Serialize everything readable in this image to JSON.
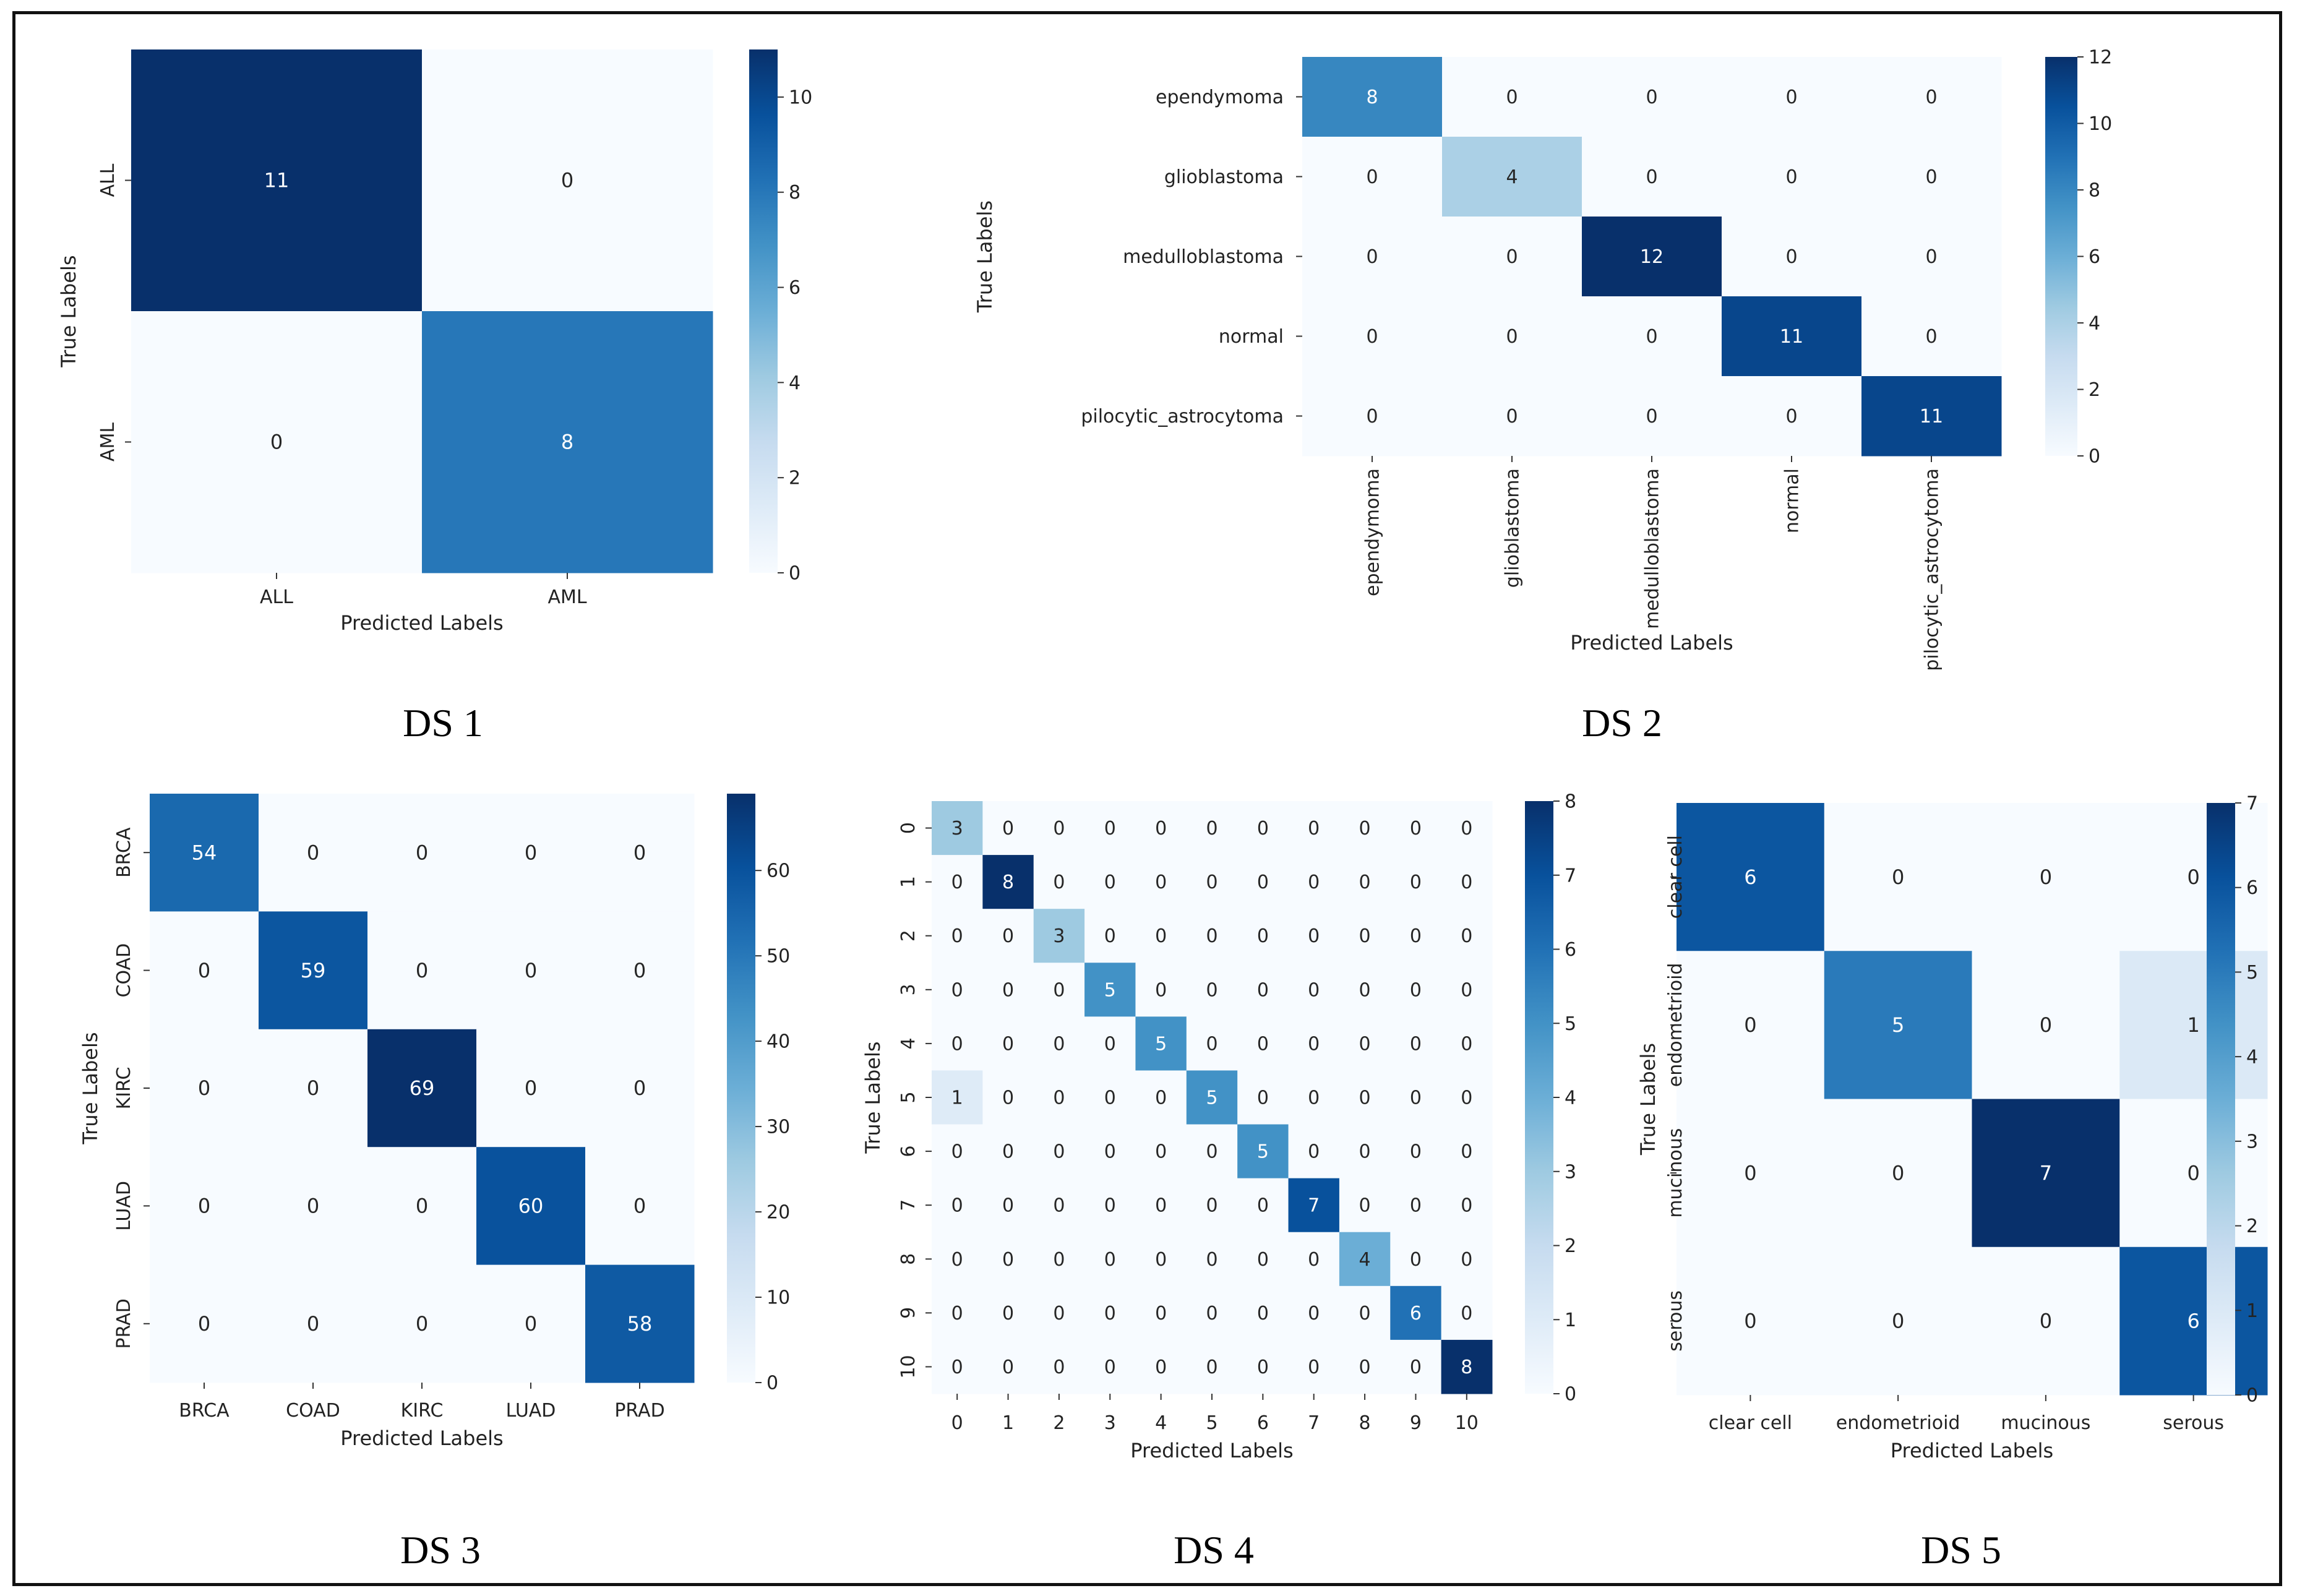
{
  "figure": {
    "captions": [
      "DS 1",
      "DS 2",
      "DS 3",
      "DS 4",
      "DS 5"
    ]
  },
  "chart_data": [
    {
      "type": "heatmap",
      "caption": "DS 1",
      "xlabel": "Predicted Labels",
      "ylabel": "True Labels",
      "labels": [
        "ALL",
        "AML"
      ],
      "matrix": [
        [
          11,
          0
        ],
        [
          0,
          8
        ]
      ],
      "vmin": 0,
      "vmax": 11,
      "colorbar_ticks": [
        0,
        2,
        4,
        6,
        8,
        10
      ],
      "colormap": "Blues"
    },
    {
      "type": "heatmap",
      "caption": "DS 2",
      "xlabel": "Predicted Labels",
      "ylabel": "True Labels",
      "labels": [
        "ependymoma",
        "glioblastoma",
        "medulloblastoma",
        "normal",
        "pilocytic_astrocytoma"
      ],
      "matrix": [
        [
          8,
          0,
          0,
          0,
          0
        ],
        [
          0,
          4,
          0,
          0,
          0
        ],
        [
          0,
          0,
          12,
          0,
          0
        ],
        [
          0,
          0,
          0,
          11,
          0
        ],
        [
          0,
          0,
          0,
          0,
          11
        ]
      ],
      "vmin": 0,
      "vmax": 12,
      "colorbar_ticks": [
        0,
        2,
        4,
        6,
        8,
        10,
        12
      ],
      "colormap": "Blues"
    },
    {
      "type": "heatmap",
      "caption": "DS 3",
      "xlabel": "Predicted Labels",
      "ylabel": "True Labels",
      "labels": [
        "BRCA",
        "COAD",
        "KIRC",
        "LUAD",
        "PRAD"
      ],
      "matrix": [
        [
          54,
          0,
          0,
          0,
          0
        ],
        [
          0,
          59,
          0,
          0,
          0
        ],
        [
          0,
          0,
          69,
          0,
          0
        ],
        [
          0,
          0,
          0,
          60,
          0
        ],
        [
          0,
          0,
          0,
          0,
          58
        ]
      ],
      "vmin": 0,
      "vmax": 69,
      "colorbar_ticks": [
        0,
        10,
        20,
        30,
        40,
        50,
        60
      ],
      "colormap": "Blues"
    },
    {
      "type": "heatmap",
      "caption": "DS 4",
      "xlabel": "Predicted Labels",
      "ylabel": "True Labels",
      "labels": [
        "0",
        "1",
        "2",
        "3",
        "4",
        "5",
        "6",
        "7",
        "8",
        "9",
        "10"
      ],
      "matrix": [
        [
          3,
          0,
          0,
          0,
          0,
          0,
          0,
          0,
          0,
          0,
          0
        ],
        [
          0,
          8,
          0,
          0,
          0,
          0,
          0,
          0,
          0,
          0,
          0
        ],
        [
          0,
          0,
          3,
          0,
          0,
          0,
          0,
          0,
          0,
          0,
          0
        ],
        [
          0,
          0,
          0,
          5,
          0,
          0,
          0,
          0,
          0,
          0,
          0
        ],
        [
          0,
          0,
          0,
          0,
          5,
          0,
          0,
          0,
          0,
          0,
          0
        ],
        [
          1,
          0,
          0,
          0,
          0,
          5,
          0,
          0,
          0,
          0,
          0
        ],
        [
          0,
          0,
          0,
          0,
          0,
          0,
          5,
          0,
          0,
          0,
          0
        ],
        [
          0,
          0,
          0,
          0,
          0,
          0,
          0,
          7,
          0,
          0,
          0
        ],
        [
          0,
          0,
          0,
          0,
          0,
          0,
          0,
          0,
          4,
          0,
          0
        ],
        [
          0,
          0,
          0,
          0,
          0,
          0,
          0,
          0,
          0,
          6,
          0
        ],
        [
          0,
          0,
          0,
          0,
          0,
          0,
          0,
          0,
          0,
          0,
          8
        ]
      ],
      "vmin": 0,
      "vmax": 8,
      "colorbar_ticks": [
        0,
        1,
        2,
        3,
        4,
        5,
        6,
        7,
        8
      ],
      "colormap": "Blues"
    },
    {
      "type": "heatmap",
      "caption": "DS 5",
      "xlabel": "Predicted Labels",
      "ylabel": "True Labels",
      "labels": [
        "clear cell",
        "endometrioid",
        "mucinous",
        "serous"
      ],
      "matrix": [
        [
          6,
          0,
          0,
          0
        ],
        [
          0,
          5,
          0,
          1
        ],
        [
          0,
          0,
          7,
          0
        ],
        [
          0,
          0,
          0,
          6
        ]
      ],
      "vmin": 0,
      "vmax": 7,
      "colorbar_ticks": [
        0,
        1,
        2,
        3,
        4,
        5,
        6,
        7
      ],
      "colormap": "Blues"
    }
  ]
}
